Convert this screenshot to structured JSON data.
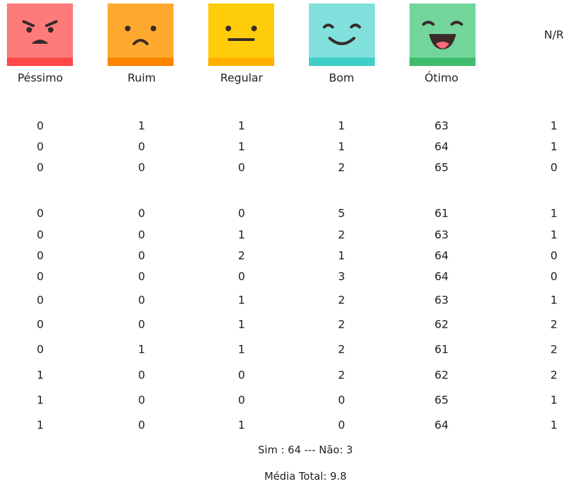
{
  "header": {
    "labels": [
      "Péssimo",
      "Ruim",
      "Regular",
      "Bom",
      "Ótimo",
      "N/R"
    ]
  },
  "table": {
    "groups": [
      {
        "rows": [
          [
            0,
            1,
            1,
            1,
            63,
            1
          ],
          [
            0,
            0,
            1,
            1,
            64,
            1
          ],
          [
            0,
            0,
            0,
            2,
            65,
            0
          ]
        ]
      },
      {
        "rows": [
          [
            0,
            0,
            0,
            5,
            61,
            1
          ],
          [
            0,
            0,
            1,
            2,
            63,
            1
          ],
          [
            0,
            0,
            2,
            1,
            64,
            0
          ],
          [
            0,
            0,
            0,
            3,
            64,
            0
          ],
          [
            0,
            0,
            1,
            2,
            63,
            1
          ],
          [
            0,
            0,
            1,
            2,
            62,
            2
          ],
          [
            0,
            1,
            1,
            2,
            61,
            2
          ],
          [
            1,
            0,
            0,
            2,
            62,
            2
          ],
          [
            1,
            0,
            0,
            0,
            65,
            1
          ],
          [
            1,
            0,
            1,
            0,
            64,
            1
          ]
        ]
      }
    ]
  },
  "footer": {
    "summary": "Sim : 64 --- Não: 3",
    "average": "Média Total: 9.8"
  }
}
